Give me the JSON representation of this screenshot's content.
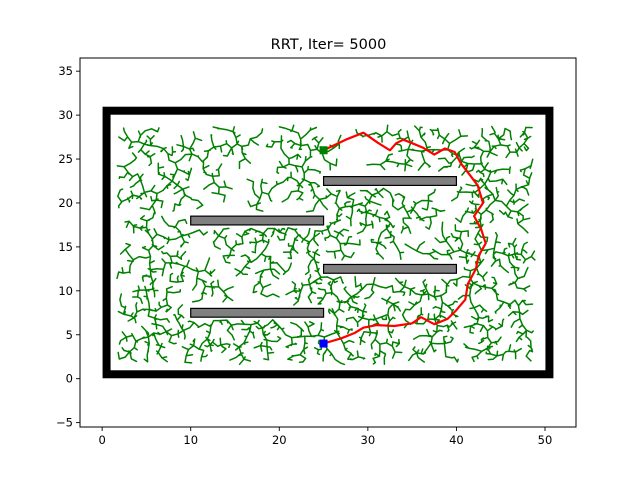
{
  "chart_data": {
    "type": "scatter",
    "title": "RRT, Iter= 5000",
    "xlabel": "",
    "ylabel": "",
    "xlim": [
      -2.5,
      53.5
    ],
    "ylim": [
      -5.5,
      36.5
    ],
    "xticks": [
      0,
      10,
      20,
      30,
      40,
      50
    ],
    "yticks": [
      -5,
      0,
      5,
      10,
      15,
      20,
      25,
      30,
      35
    ],
    "grid": false,
    "legend": "none",
    "boundary": {
      "x0": 0.5,
      "y0": 0.5,
      "x1": 50.5,
      "y1": 30.5,
      "color": "#000000"
    },
    "obstacles": [
      {
        "x": 10,
        "y": 17.5,
        "w": 15,
        "h": 1,
        "color": "#808080"
      },
      {
        "x": 10,
        "y": 7,
        "w": 15,
        "h": 1,
        "color": "#808080"
      },
      {
        "x": 25,
        "y": 22,
        "w": 15,
        "h": 1,
        "color": "#808080"
      },
      {
        "x": 25,
        "y": 12,
        "w": 15,
        "h": 1,
        "color": "#808080"
      }
    ],
    "start": {
      "x": 25,
      "y": 4,
      "color": "#0000ff"
    },
    "goal": {
      "x": 25,
      "y": 26,
      "color": "#008000"
    },
    "tree_color": "#008000",
    "path_color": "#ff0000",
    "path": [
      [
        25,
        4
      ],
      [
        27,
        4.6
      ],
      [
        28.5,
        5.2
      ],
      [
        29.5,
        5.8
      ],
      [
        31,
        6.1
      ],
      [
        33,
        6.0
      ],
      [
        35,
        6.3
      ],
      [
        36,
        7.0
      ],
      [
        37.5,
        6.2
      ],
      [
        39,
        6.8
      ],
      [
        40,
        7.8
      ],
      [
        41,
        9.0
      ],
      [
        41.3,
        10.8
      ],
      [
        42.2,
        12.5
      ],
      [
        42.5,
        14.0
      ],
      [
        43.3,
        15.4
      ],
      [
        42.8,
        17.0
      ],
      [
        42.0,
        18.5
      ],
      [
        43.0,
        20.0
      ],
      [
        42.4,
        22.0
      ],
      [
        41.5,
        23.2
      ],
      [
        40.5,
        24.5
      ],
      [
        39.8,
        25.8
      ],
      [
        38.7,
        26.2
      ],
      [
        37.5,
        25.5
      ],
      [
        36.2,
        26.3
      ],
      [
        35.0,
        26.8
      ],
      [
        34.0,
        27.2
      ],
      [
        33.2,
        26.8
      ],
      [
        32.5,
        26.0
      ],
      [
        31.2,
        26.8
      ],
      [
        29.5,
        28.0
      ],
      [
        27.5,
        27.2
      ],
      [
        25,
        26
      ]
    ]
  }
}
